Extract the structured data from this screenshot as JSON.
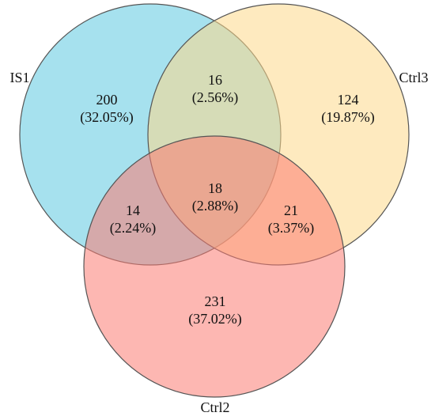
{
  "chart_data": {
    "type": "venn",
    "sets": [
      {
        "name": "IS1",
        "color": "#5cc8e0"
      },
      {
        "name": "Ctrl3",
        "color": "#fdd98a"
      },
      {
        "name": "Ctrl2",
        "color": "#fb7b72"
      }
    ],
    "counts": [
      200,
      16,
      124,
      18,
      14,
      21,
      231
    ],
    "percents": [
      32.05,
      2.56,
      19.87,
      2.88,
      2.24,
      3.37,
      37.02
    ],
    "percent_labels": [
      "(32.05%)",
      "(2.56%)",
      "(19.87%)",
      "(2.88%)",
      "(2.24%)",
      "(3.37%)",
      "(37.02%)"
    ]
  }
}
